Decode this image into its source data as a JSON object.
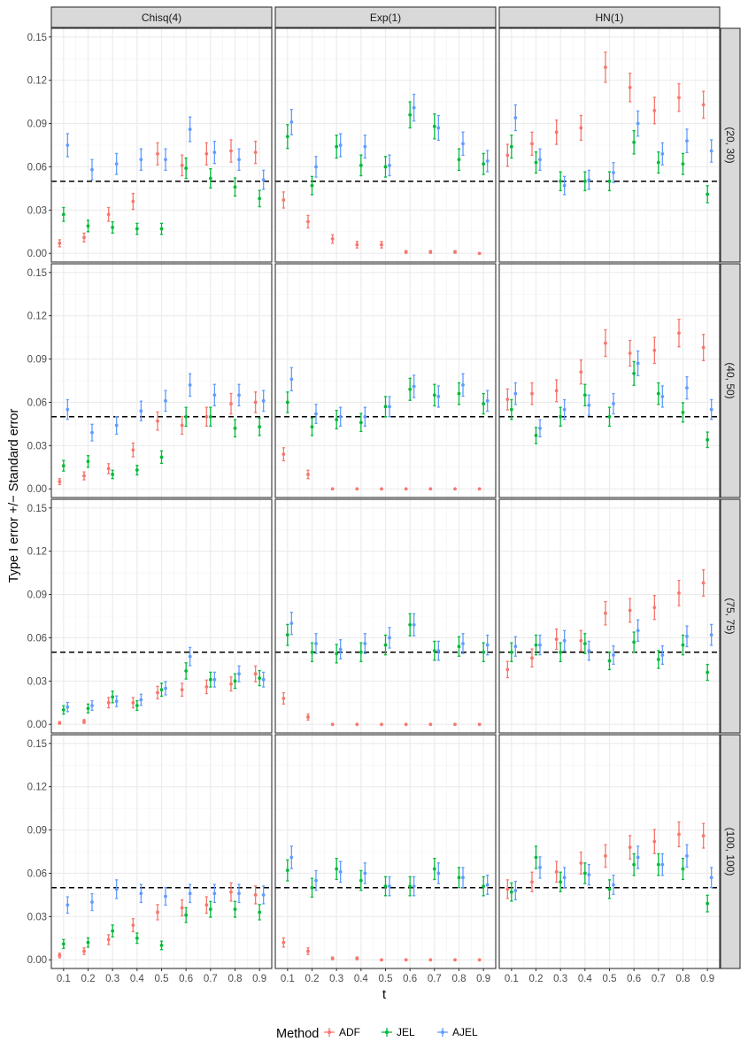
{
  "chart_data": {
    "type": "scatter",
    "xlabel": "t",
    "ylabel": "Type I error +/− Standard error",
    "x": [
      0.1,
      0.2,
      0.3,
      0.4,
      0.5,
      0.6,
      0.7,
      0.8,
      0.9
    ],
    "x_tick_labels": [
      "0.1",
      "0.2",
      "0.3",
      "0.4",
      "0.5",
      "0.6",
      "0.7",
      "0.8",
      "0.9"
    ],
    "ylim": [
      -0.006,
      0.156
    ],
    "y_ticks": [
      0.0,
      0.03,
      0.06,
      0.09,
      0.12,
      0.15
    ],
    "y_tick_labels": [
      "0.00",
      "0.03",
      "0.06",
      "0.09",
      "0.12",
      "0.15"
    ],
    "reference_line": 0.05,
    "grid": true,
    "legend": {
      "title": "Method",
      "position": "bottom",
      "entries": [
        "ADF",
        "JEL",
        "AJEL"
      ]
    },
    "colors": {
      "ADF": "#F8766D",
      "JEL": "#00BA38",
      "AJEL": "#619CFF"
    },
    "columns": [
      "Chisq(4)",
      "Exp(1)",
      "HN(1)"
    ],
    "rows": [
      "(20, 30)",
      "(40, 50)",
      "(75, 75)",
      "(100, 100)"
    ],
    "panels": [
      [
        {
          "ADF": [
            0.007,
            0.011,
            0.027,
            0.036,
            0.069,
            0.061,
            0.069,
            0.071,
            0.07
          ],
          "JEL": [
            0.027,
            0.019,
            0.018,
            0.017,
            0.017,
            0.059,
            0.052,
            0.046,
            0.038
          ],
          "AJEL": [
            0.075,
            0.058,
            0.062,
            0.065,
            0.065,
            0.086,
            0.07,
            0.065,
            0.051
          ]
        },
        {
          "ADF": [
            0.037,
            0.022,
            0.01,
            0.006,
            0.006,
            0.001,
            0.001,
            0.001,
            0.0
          ],
          "JEL": [
            0.081,
            0.047,
            0.074,
            0.061,
            0.06,
            0.096,
            0.088,
            0.065,
            0.062
          ],
          "AJEL": [
            0.091,
            0.06,
            0.075,
            0.074,
            0.061,
            0.101,
            0.087,
            0.076,
            0.064
          ]
        },
        {
          "ADF": [
            0.068,
            0.076,
            0.084,
            0.087,
            0.129,
            0.115,
            0.099,
            0.108,
            0.103
          ],
          "JEL": [
            0.074,
            0.063,
            0.05,
            0.05,
            0.05,
            0.077,
            0.063,
            0.062,
            0.041
          ],
          "AJEL": [
            0.094,
            0.065,
            0.047,
            0.051,
            0.056,
            0.09,
            0.069,
            0.078,
            0.071
          ]
        }
      ],
      [
        {
          "ADF": [
            0.005,
            0.009,
            0.014,
            0.027,
            0.047,
            0.044,
            0.05,
            0.059,
            0.06
          ],
          "JEL": [
            0.016,
            0.019,
            0.01,
            0.013,
            0.022,
            0.05,
            0.05,
            0.042,
            0.043
          ],
          "AJEL": [
            0.055,
            0.039,
            0.044,
            0.054,
            0.061,
            0.072,
            0.065,
            0.065,
            0.061
          ]
        },
        {
          "ADF": [
            0.024,
            0.01,
            0.0,
            0.0,
            0.0,
            0.0,
            0.0,
            0.0,
            0.0
          ],
          "JEL": [
            0.06,
            0.043,
            0.048,
            0.046,
            0.057,
            0.069,
            0.065,
            0.066,
            0.059
          ],
          "AJEL": [
            0.076,
            0.052,
            0.05,
            0.05,
            0.057,
            0.071,
            0.064,
            0.072,
            0.061
          ]
        },
        {
          "ADF": [
            0.062,
            0.066,
            0.068,
            0.081,
            0.101,
            0.094,
            0.096,
            0.108,
            0.098
          ],
          "JEL": [
            0.055,
            0.037,
            0.05,
            0.065,
            0.05,
            0.08,
            0.066,
            0.053,
            0.034
          ],
          "AJEL": [
            0.066,
            0.042,
            0.055,
            0.058,
            0.059,
            0.087,
            0.064,
            0.07,
            0.055
          ]
        }
      ],
      [
        {
          "ADF": [
            0.001,
            0.002,
            0.015,
            0.015,
            0.022,
            0.024,
            0.026,
            0.028,
            0.035
          ],
          "JEL": [
            0.01,
            0.011,
            0.019,
            0.013,
            0.024,
            0.037,
            0.031,
            0.03,
            0.032
          ],
          "AJEL": [
            0.012,
            0.013,
            0.016,
            0.017,
            0.025,
            0.047,
            0.031,
            0.035,
            0.031
          ]
        },
        {
          "ADF": [
            0.018,
            0.005,
            0.0,
            0.0,
            0.0,
            0.0,
            0.0,
            0.0,
            0.0
          ],
          "JEL": [
            0.062,
            0.05,
            0.049,
            0.05,
            0.055,
            0.069,
            0.051,
            0.054,
            0.05
          ],
          "AJEL": [
            0.07,
            0.056,
            0.052,
            0.056,
            0.06,
            0.069,
            0.051,
            0.056,
            0.055
          ]
        },
        {
          "ADF": [
            0.038,
            0.046,
            0.059,
            0.058,
            0.077,
            0.079,
            0.081,
            0.091,
            0.098
          ],
          "JEL": [
            0.05,
            0.055,
            0.05,
            0.056,
            0.044,
            0.057,
            0.045,
            0.055,
            0.036
          ],
          "AJEL": [
            0.054,
            0.055,
            0.058,
            0.051,
            0.048,
            0.065,
            0.048,
            0.061,
            0.062
          ]
        }
      ],
      [
        {
          "ADF": [
            0.003,
            0.006,
            0.014,
            0.024,
            0.033,
            0.036,
            0.038,
            0.047,
            0.045
          ],
          "JEL": [
            0.011,
            0.012,
            0.02,
            0.015,
            0.01,
            0.031,
            0.035,
            0.035,
            0.033
          ],
          "AJEL": [
            0.038,
            0.04,
            0.049,
            0.046,
            0.044,
            0.046,
            0.046,
            0.046,
            0.045
          ]
        },
        {
          "ADF": [
            0.012,
            0.006,
            0.001,
            0.001,
            0.0,
            0.0,
            0.0,
            0.0,
            0.0
          ],
          "JEL": [
            0.062,
            0.05,
            0.063,
            0.055,
            0.051,
            0.051,
            0.063,
            0.057,
            0.051
          ],
          "AJEL": [
            0.071,
            0.055,
            0.061,
            0.06,
            0.051,
            0.051,
            0.06,
            0.057,
            0.052
          ]
        },
        {
          "ADF": [
            0.049,
            0.054,
            0.061,
            0.067,
            0.072,
            0.078,
            0.082,
            0.087,
            0.086
          ],
          "JEL": [
            0.047,
            0.071,
            0.054,
            0.06,
            0.049,
            0.066,
            0.066,
            0.063,
            0.039
          ],
          "AJEL": [
            0.048,
            0.064,
            0.057,
            0.059,
            0.052,
            0.071,
            0.066,
            0.072,
            0.057
          ]
        }
      ]
    ]
  }
}
